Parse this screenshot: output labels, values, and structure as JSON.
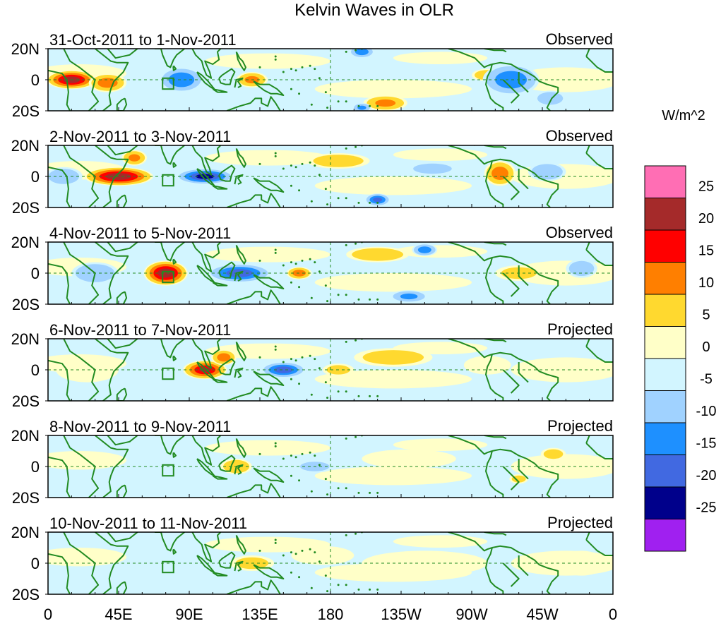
{
  "chart_data": {
    "type": "heatmap",
    "title": "Kelvin Waves in OLR",
    "units": "W/m^2",
    "colorbar": {
      "levels": [
        "25",
        "20",
        "15",
        "10",
        "5",
        "0",
        "-5",
        "-10",
        "-15",
        "-20",
        "-25"
      ],
      "colors": [
        "#ff6eb4",
        "#a52a2a",
        "#ff0000",
        "#ff7f00",
        "#ffd92f",
        "#ffffc8",
        "#d2f5ff",
        "#a0d2ff",
        "#1e90ff",
        "#4169e1",
        "#00008b",
        "#a020f0"
      ]
    },
    "x_ticks": [
      "0",
      "45E",
      "90E",
      "135E",
      "180",
      "135W",
      "90W",
      "45W",
      "0"
    ],
    "y_ticks": [
      "20N",
      "0",
      "20S"
    ],
    "xlim_deg_east": [
      0,
      360
    ],
    "ylim_deg_north": [
      -20,
      20
    ],
    "panels": [
      {
        "period": "31-Oct-2011 to 1-Nov-2011",
        "label": "Observed",
        "anomalies": [
          {
            "lon": 15,
            "lat": 0,
            "value": 23,
            "rlon": 16,
            "rlat": 6
          },
          {
            "lon": 38,
            "lat": -2,
            "value": 12,
            "rlon": 12,
            "rlat": 6
          },
          {
            "lon": 85,
            "lat": 0,
            "value": -14,
            "rlon": 14,
            "rlat": 8
          },
          {
            "lon": 130,
            "lat": 0,
            "value": 10,
            "rlon": 10,
            "rlat": 5
          },
          {
            "lon": 200,
            "lat": 18,
            "value": -12,
            "rlon": 8,
            "rlat": 4
          },
          {
            "lon": 215,
            "lat": -15,
            "value": 10,
            "rlon": 14,
            "rlat": 5
          },
          {
            "lon": 280,
            "lat": 3,
            "value": 8,
            "rlon": 10,
            "rlat": 4
          },
          {
            "lon": 295,
            "lat": 0,
            "value": -13,
            "rlon": 18,
            "rlat": 10
          },
          {
            "lon": 320,
            "lat": -12,
            "value": -8,
            "rlon": 10,
            "rlat": 5
          },
          {
            "lon": 200,
            "lat": -18,
            "value": -10,
            "rlon": 6,
            "rlat": 3
          }
        ]
      },
      {
        "period": "2-Nov-2011 to 3-Nov-2011",
        "label": "Observed",
        "anomalies": [
          {
            "lon": 10,
            "lat": 0,
            "value": -8,
            "rlon": 12,
            "rlat": 6
          },
          {
            "lon": 45,
            "lat": 0,
            "value": 24,
            "rlon": 22,
            "rlat": 6
          },
          {
            "lon": 55,
            "lat": 12,
            "value": 10,
            "rlon": 8,
            "rlat": 5
          },
          {
            "lon": 100,
            "lat": 0,
            "value": -22,
            "rlon": 18,
            "rlat": 5
          },
          {
            "lon": 185,
            "lat": 10,
            "value": 7,
            "rlon": 20,
            "rlat": 5
          },
          {
            "lon": 210,
            "lat": -15,
            "value": -16,
            "rlon": 8,
            "rlat": 4
          },
          {
            "lon": 245,
            "lat": 5,
            "value": -8,
            "rlon": 15,
            "rlat": 4
          },
          {
            "lon": 288,
            "lat": 2,
            "value": 12,
            "rlon": 10,
            "rlat": 8
          },
          {
            "lon": 318,
            "lat": 3,
            "value": -9,
            "rlon": 12,
            "rlat": 6
          }
        ]
      },
      {
        "period": "4-Nov-2011 to 5-Nov-2011",
        "label": "Observed",
        "anomalies": [
          {
            "lon": 30,
            "lat": 0,
            "value": -9,
            "rlon": 15,
            "rlat": 7
          },
          {
            "lon": 75,
            "lat": 0,
            "value": 24,
            "rlon": 14,
            "rlat": 8
          },
          {
            "lon": 122,
            "lat": 0,
            "value": -18,
            "rlon": 20,
            "rlat": 6
          },
          {
            "lon": 160,
            "lat": 0,
            "value": 12,
            "rlon": 8,
            "rlat": 4
          },
          {
            "lon": 210,
            "lat": 12,
            "value": 8,
            "rlon": 20,
            "rlat": 5
          },
          {
            "lon": 230,
            "lat": -15,
            "value": -10,
            "rlon": 12,
            "rlat": 4
          },
          {
            "lon": 240,
            "lat": 15,
            "value": -12,
            "rlon": 8,
            "rlat": 4
          },
          {
            "lon": 300,
            "lat": 0,
            "value": 5,
            "rlon": 15,
            "rlat": 5
          },
          {
            "lon": 340,
            "lat": 3,
            "value": -7,
            "rlon": 10,
            "rlat": 6
          }
        ]
      },
      {
        "period": "6-Nov-2011 to 7-Nov-2011",
        "label": "Projected",
        "anomalies": [
          {
            "lon": 100,
            "lat": 0,
            "value": 20,
            "rlon": 14,
            "rlat": 6
          },
          {
            "lon": 112,
            "lat": 8,
            "value": 12,
            "rlon": 8,
            "rlat": 5
          },
          {
            "lon": 150,
            "lat": 0,
            "value": -18,
            "rlon": 14,
            "rlat": 5
          },
          {
            "lon": 185,
            "lat": 0,
            "value": 5,
            "rlon": 10,
            "rlat": 4
          },
          {
            "lon": 220,
            "lat": 8,
            "value": 6,
            "rlon": 25,
            "rlat": 6
          },
          {
            "lon": 280,
            "lat": 3,
            "value": 4,
            "rlon": 15,
            "rlat": 6
          },
          {
            "lon": 25,
            "lat": 0,
            "value": 3,
            "rlon": 20,
            "rlat": 8
          }
        ]
      },
      {
        "period": "8-Nov-2011 to 9-Nov-2011",
        "label": "Projected",
        "anomalies": [
          {
            "lon": 120,
            "lat": 0,
            "value": 9,
            "rlon": 10,
            "rlat": 5
          },
          {
            "lon": 170,
            "lat": 0,
            "value": -6,
            "rlon": 12,
            "rlat": 4
          },
          {
            "lon": 230,
            "lat": 5,
            "value": 4,
            "rlon": 30,
            "rlat": 6
          },
          {
            "lon": 322,
            "lat": 8,
            "value": 6,
            "rlon": 8,
            "rlat": 4
          },
          {
            "lon": 300,
            "lat": -8,
            "value": 5,
            "rlon": 6,
            "rlat": 3
          }
        ]
      },
      {
        "period": "10-Nov-2011 to 11-Nov-2011",
        "label": "Projected",
        "anomalies": [
          {
            "lon": 130,
            "lat": 0,
            "value": 5,
            "rlon": 14,
            "rlat": 5
          },
          {
            "lon": 175,
            "lat": 5,
            "value": 3,
            "rlon": 20,
            "rlat": 6
          },
          {
            "lon": 240,
            "lat": 0,
            "value": 3,
            "rlon": 40,
            "rlat": 8
          },
          {
            "lon": 340,
            "lat": 0,
            "value": 3,
            "rlon": 15,
            "rlat": 8
          }
        ]
      }
    ]
  }
}
